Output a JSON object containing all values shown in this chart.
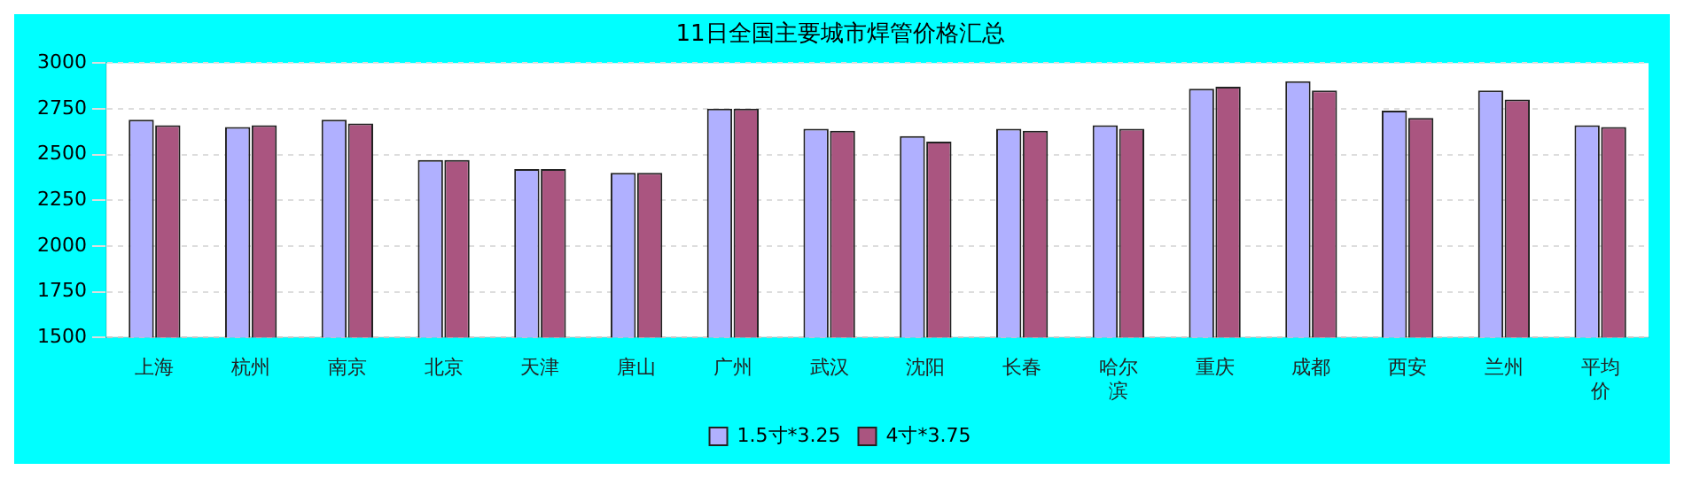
{
  "chart_data": {
    "type": "bar",
    "title": "11日全国主要城市焊管价格汇总",
    "categories": [
      "上海",
      "杭州",
      "南京",
      "北京",
      "天津",
      "唐山",
      "广州",
      "武汉",
      "沈阳",
      "长春",
      "哈尔滨",
      "重庆",
      "成都",
      "西安",
      "兰州",
      "平均价"
    ],
    "series": [
      {
        "name": "1.5寸*3.25",
        "color": "#b0b0ff",
        "values": [
          2690,
          2650,
          2690,
          2470,
          2420,
          2400,
          2750,
          2640,
          2600,
          2640,
          2660,
          2860,
          2900,
          2740,
          2850,
          2660
        ]
      },
      {
        "name": "4寸*3.75",
        "color": "#aa5580",
        "values": [
          2660,
          2660,
          2670,
          2470,
          2420,
          2400,
          2750,
          2630,
          2570,
          2630,
          2640,
          2870,
          2850,
          2700,
          2800,
          2650
        ]
      }
    ],
    "ylim": [
      1500,
      3000
    ],
    "yticks": [
      1500,
      1750,
      2000,
      2250,
      2500,
      2750,
      3000
    ],
    "grid": "y",
    "legend": "bottom"
  }
}
